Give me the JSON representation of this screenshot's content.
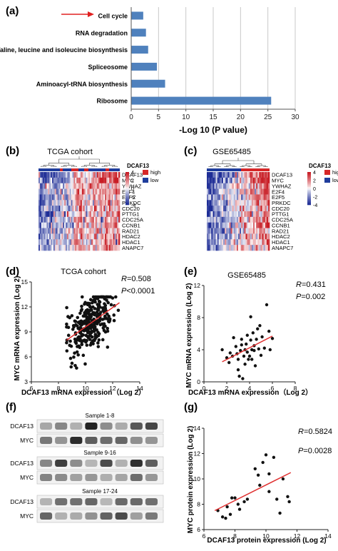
{
  "colors": {
    "bar": "#4f81bd",
    "arrow": "#e02020",
    "fit_line": "#e03030",
    "point": "#111111",
    "heat_high": "#d62728",
    "heat_low": "#1f3d9c"
  },
  "panel_a": {
    "label": "(a)",
    "chart_data": {
      "type": "bar",
      "orientation": "horizontal",
      "categories": [
        "Cell cycle",
        "RNA degradation",
        "Valine, leucine and isoleucine biosynthesis",
        "Spliceosome",
        "Aminoacyl-tRNA biosynthesis",
        "Ribosome"
      ],
      "values": [
        2.2,
        2.7,
        3.1,
        4.7,
        6.2,
        25.6
      ],
      "xlabel": "-Log 10 (P value)",
      "xlim": [
        0,
        30
      ],
      "xticks": [
        "0",
        "5",
        "10",
        "15",
        "20",
        "25",
        "30"
      ],
      "grid": "vertical",
      "highlight": "Cell cycle"
    }
  },
  "panel_b": {
    "label": "(b)",
    "title": "TCGA cohort",
    "genes": [
      "DCAF13",
      "MYC",
      "YWHAZ",
      "E2F4",
      "E2F5",
      "PRKDC",
      "CDC20",
      "PTTG1",
      "CDC25A",
      "CCNB1",
      "RAD21",
      "HDAC2",
      "HDAC1",
      "ANAPC7"
    ],
    "legend_ticks": [
      "4",
      "2",
      "0",
      "-2",
      "-4"
    ],
    "group_title": "DCAF13",
    "group_high": "high",
    "group_low": "low"
  },
  "panel_c": {
    "label": "(c)",
    "title": "GSE65485",
    "genes": [
      "DCAF13",
      "MYC",
      "YWHAZ",
      "E2F4",
      "E2F5",
      "PRKDC",
      "CDC20",
      "PTTG1",
      "CDC25A",
      "CCNB1",
      "RAD21",
      "HDAC2",
      "HDAC1",
      "ANAPC7"
    ],
    "legend_ticks": [
      "4",
      "2",
      "0",
      "-2",
      "-4"
    ],
    "group_title": "DCAF13",
    "group_high": "high",
    "group_low": "low"
  },
  "panel_d": {
    "label": "(d)",
    "title": "TCGA cohort",
    "r_text": "=0.508",
    "p_text": "<0.0001",
    "chart_data": {
      "type": "scatter",
      "xlabel": "DCAF13 mRNA expression（Log 2）",
      "ylabel": "MYC mRNA expression (Log 2)",
      "xlim": [
        6,
        14
      ],
      "ylim": [
        3,
        15
      ],
      "xticks": [
        "6",
        "8",
        "10",
        "12",
        "14"
      ],
      "yticks": [
        "3",
        "6",
        "9",
        "12",
        "15"
      ],
      "n_points": 300,
      "fit": {
        "x": [
          8.6,
          12.5
        ],
        "y": [
          8.0,
          12.5
        ]
      }
    }
  },
  "panel_e": {
    "label": "(e)",
    "title": "GSE65485",
    "r_text": "=0.431",
    "p_text": "=0.002",
    "chart_data": {
      "type": "scatter",
      "xlabel": "DCAF13 mRNA expression（Log 2）",
      "ylabel": "MYC mRNA expression (Log 2)",
      "xlim": [
        0,
        8
      ],
      "ylim": [
        0,
        12
      ],
      "xticks": [
        "0",
        "2",
        "4",
        "6",
        "8"
      ],
      "yticks": [
        "0",
        "4",
        "8",
        "12"
      ],
      "points": [
        [
          1.6,
          4.0
        ],
        [
          2.0,
          3.0
        ],
        [
          2.2,
          2.4
        ],
        [
          2.3,
          3.6
        ],
        [
          2.5,
          3.2
        ],
        [
          2.6,
          5.5
        ],
        [
          2.8,
          4.4
        ],
        [
          2.9,
          3.5
        ],
        [
          3.0,
          1.5
        ],
        [
          3.0,
          2.8
        ],
        [
          3.1,
          0.7
        ],
        [
          3.2,
          3.9
        ],
        [
          3.3,
          5.3
        ],
        [
          3.3,
          4.6
        ],
        [
          3.4,
          0.4
        ],
        [
          3.5,
          3.2
        ],
        [
          3.6,
          4.0
        ],
        [
          3.6,
          2.2
        ],
        [
          3.7,
          4.7
        ],
        [
          3.8,
          5.8
        ],
        [
          3.8,
          3.7
        ],
        [
          3.9,
          2.8
        ],
        [
          4.0,
          3.2
        ],
        [
          4.1,
          8.1
        ],
        [
          4.1,
          5.2
        ],
        [
          4.2,
          4.0
        ],
        [
          4.2,
          2.8
        ],
        [
          4.3,
          6.1
        ],
        [
          4.4,
          4.5
        ],
        [
          4.4,
          3.9
        ],
        [
          4.5,
          2.0
        ],
        [
          4.6,
          5.3
        ],
        [
          4.7,
          6.6
        ],
        [
          4.8,
          4.1
        ],
        [
          4.9,
          7.0
        ],
        [
          5.0,
          3.3
        ],
        [
          5.1,
          5.6
        ],
        [
          5.3,
          4.2
        ],
        [
          5.5,
          9.6
        ],
        [
          5.7,
          6.3
        ],
        [
          5.8,
          4.0
        ],
        [
          6.0,
          5.4
        ]
      ],
      "fit": {
        "x": [
          1.6,
          6.0
        ],
        "y": [
          2.5,
          5.7
        ]
      }
    }
  },
  "panel_f": {
    "label": "(f)",
    "blots": [
      {
        "title": "Sample 1-8",
        "rows": [
          "DCAF13",
          "MYC"
        ]
      },
      {
        "title": "Sample 9-16",
        "rows": [
          "DCAF13",
          "MYC"
        ]
      },
      {
        "title": "Sample 17-24",
        "rows": [
          "DCAF13",
          "MYC"
        ]
      }
    ]
  },
  "panel_g": {
    "label": "(g)",
    "r_text": "=0.5824",
    "p_text": "=0.0028",
    "chart_data": {
      "type": "scatter",
      "xlabel": "DCAF13 protein expression (Log 2)",
      "ylabel": "MYC protein expression (Log 2)",
      "xlim": [
        6,
        14
      ],
      "ylim": [
        6,
        14
      ],
      "xticks": [
        "6",
        "8",
        "10",
        "12",
        "14"
      ],
      "yticks": [
        "6",
        "8",
        "10",
        "12",
        "14"
      ],
      "points": [
        [
          6.9,
          7.5
        ],
        [
          7.2,
          7.0
        ],
        [
          7.4,
          6.9
        ],
        [
          7.5,
          7.8
        ],
        [
          7.7,
          7.2
        ],
        [
          7.8,
          8.5
        ],
        [
          8.0,
          8.5
        ],
        [
          8.2,
          8.0
        ],
        [
          8.3,
          7.6
        ],
        [
          8.6,
          8.2
        ],
        [
          8.8,
          8.4
        ],
        [
          9.3,
          10.8
        ],
        [
          9.5,
          10.3
        ],
        [
          9.6,
          9.5
        ],
        [
          9.8,
          11.3
        ],
        [
          10.0,
          11.9
        ],
        [
          10.2,
          9.0
        ],
        [
          10.2,
          10.4
        ],
        [
          10.5,
          11.7
        ],
        [
          10.7,
          8.4
        ],
        [
          10.9,
          7.3
        ],
        [
          11.1,
          10.0
        ],
        [
          11.4,
          8.6
        ],
        [
          11.5,
          8.2
        ]
      ],
      "fit": {
        "x": [
          6.7,
          11.6
        ],
        "y": [
          7.5,
          10.5
        ]
      }
    }
  }
}
